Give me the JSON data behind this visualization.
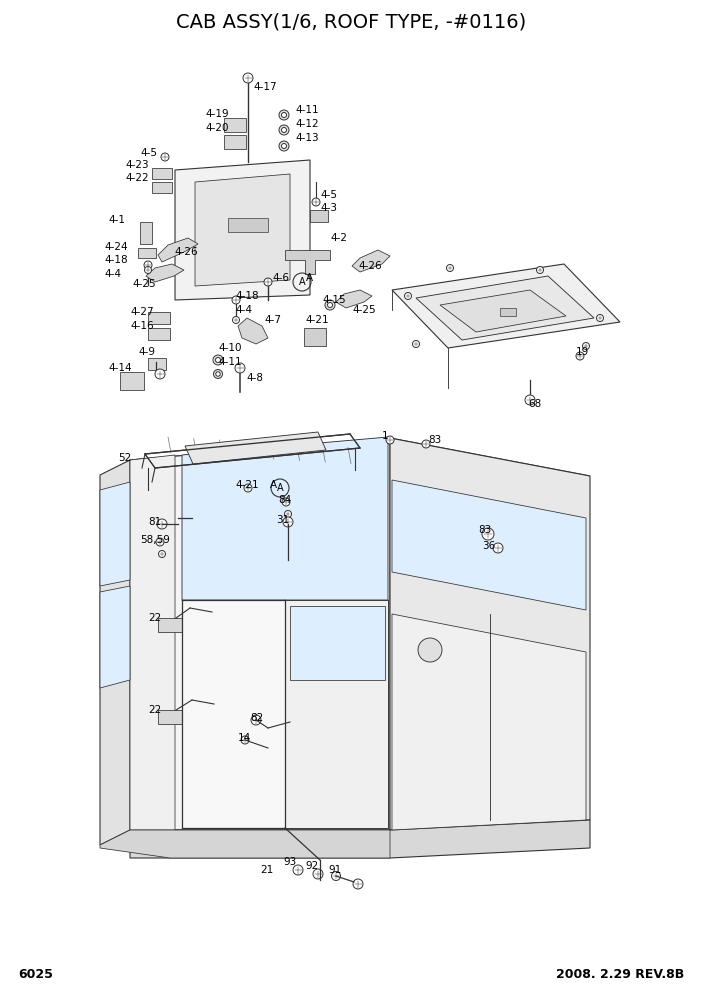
{
  "title": "CAB ASSY(1/6, ROOF TYPE, -#0116)",
  "page_number": "6025",
  "revision": "2008. 2.29 REV.8B",
  "title_fontsize": 14,
  "label_fontsize": 7.5,
  "background_color": "#ffffff",
  "line_color": "#333333"
}
